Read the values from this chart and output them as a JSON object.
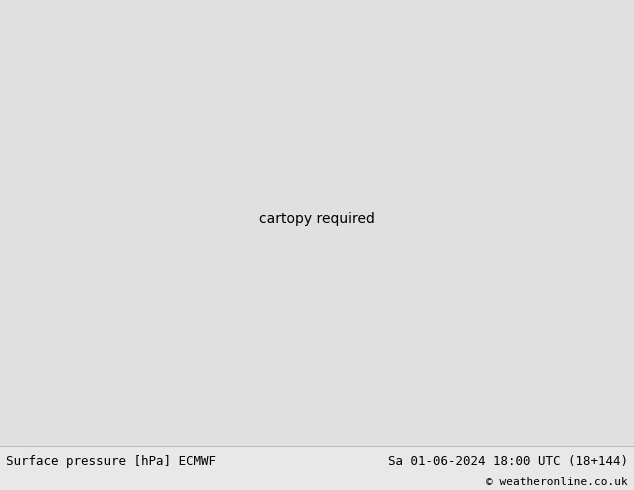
{
  "title_left": "Surface pressure [hPa] ECMWF",
  "title_right": "Sa 01-06-2024 18:00 UTC (18+144)",
  "copyright": "© weatheronline.co.uk",
  "land_color": "#c8eec8",
  "sea_color": "#e0e0e0",
  "ocean_color": "#e0e0e0",
  "contour_color": "#ff0000",
  "contour_linewidth": 1.0,
  "bottom_bar_color": "#e8e8e8",
  "font_size_bottom": 9.0,
  "font_size_labels": 7.0,
  "lon_min": -11.5,
  "lon_max": 4.0,
  "lat_min": 49.5,
  "lat_max": 60.5,
  "coast_color": "#a0a0a0",
  "coast_lw": 0.5
}
